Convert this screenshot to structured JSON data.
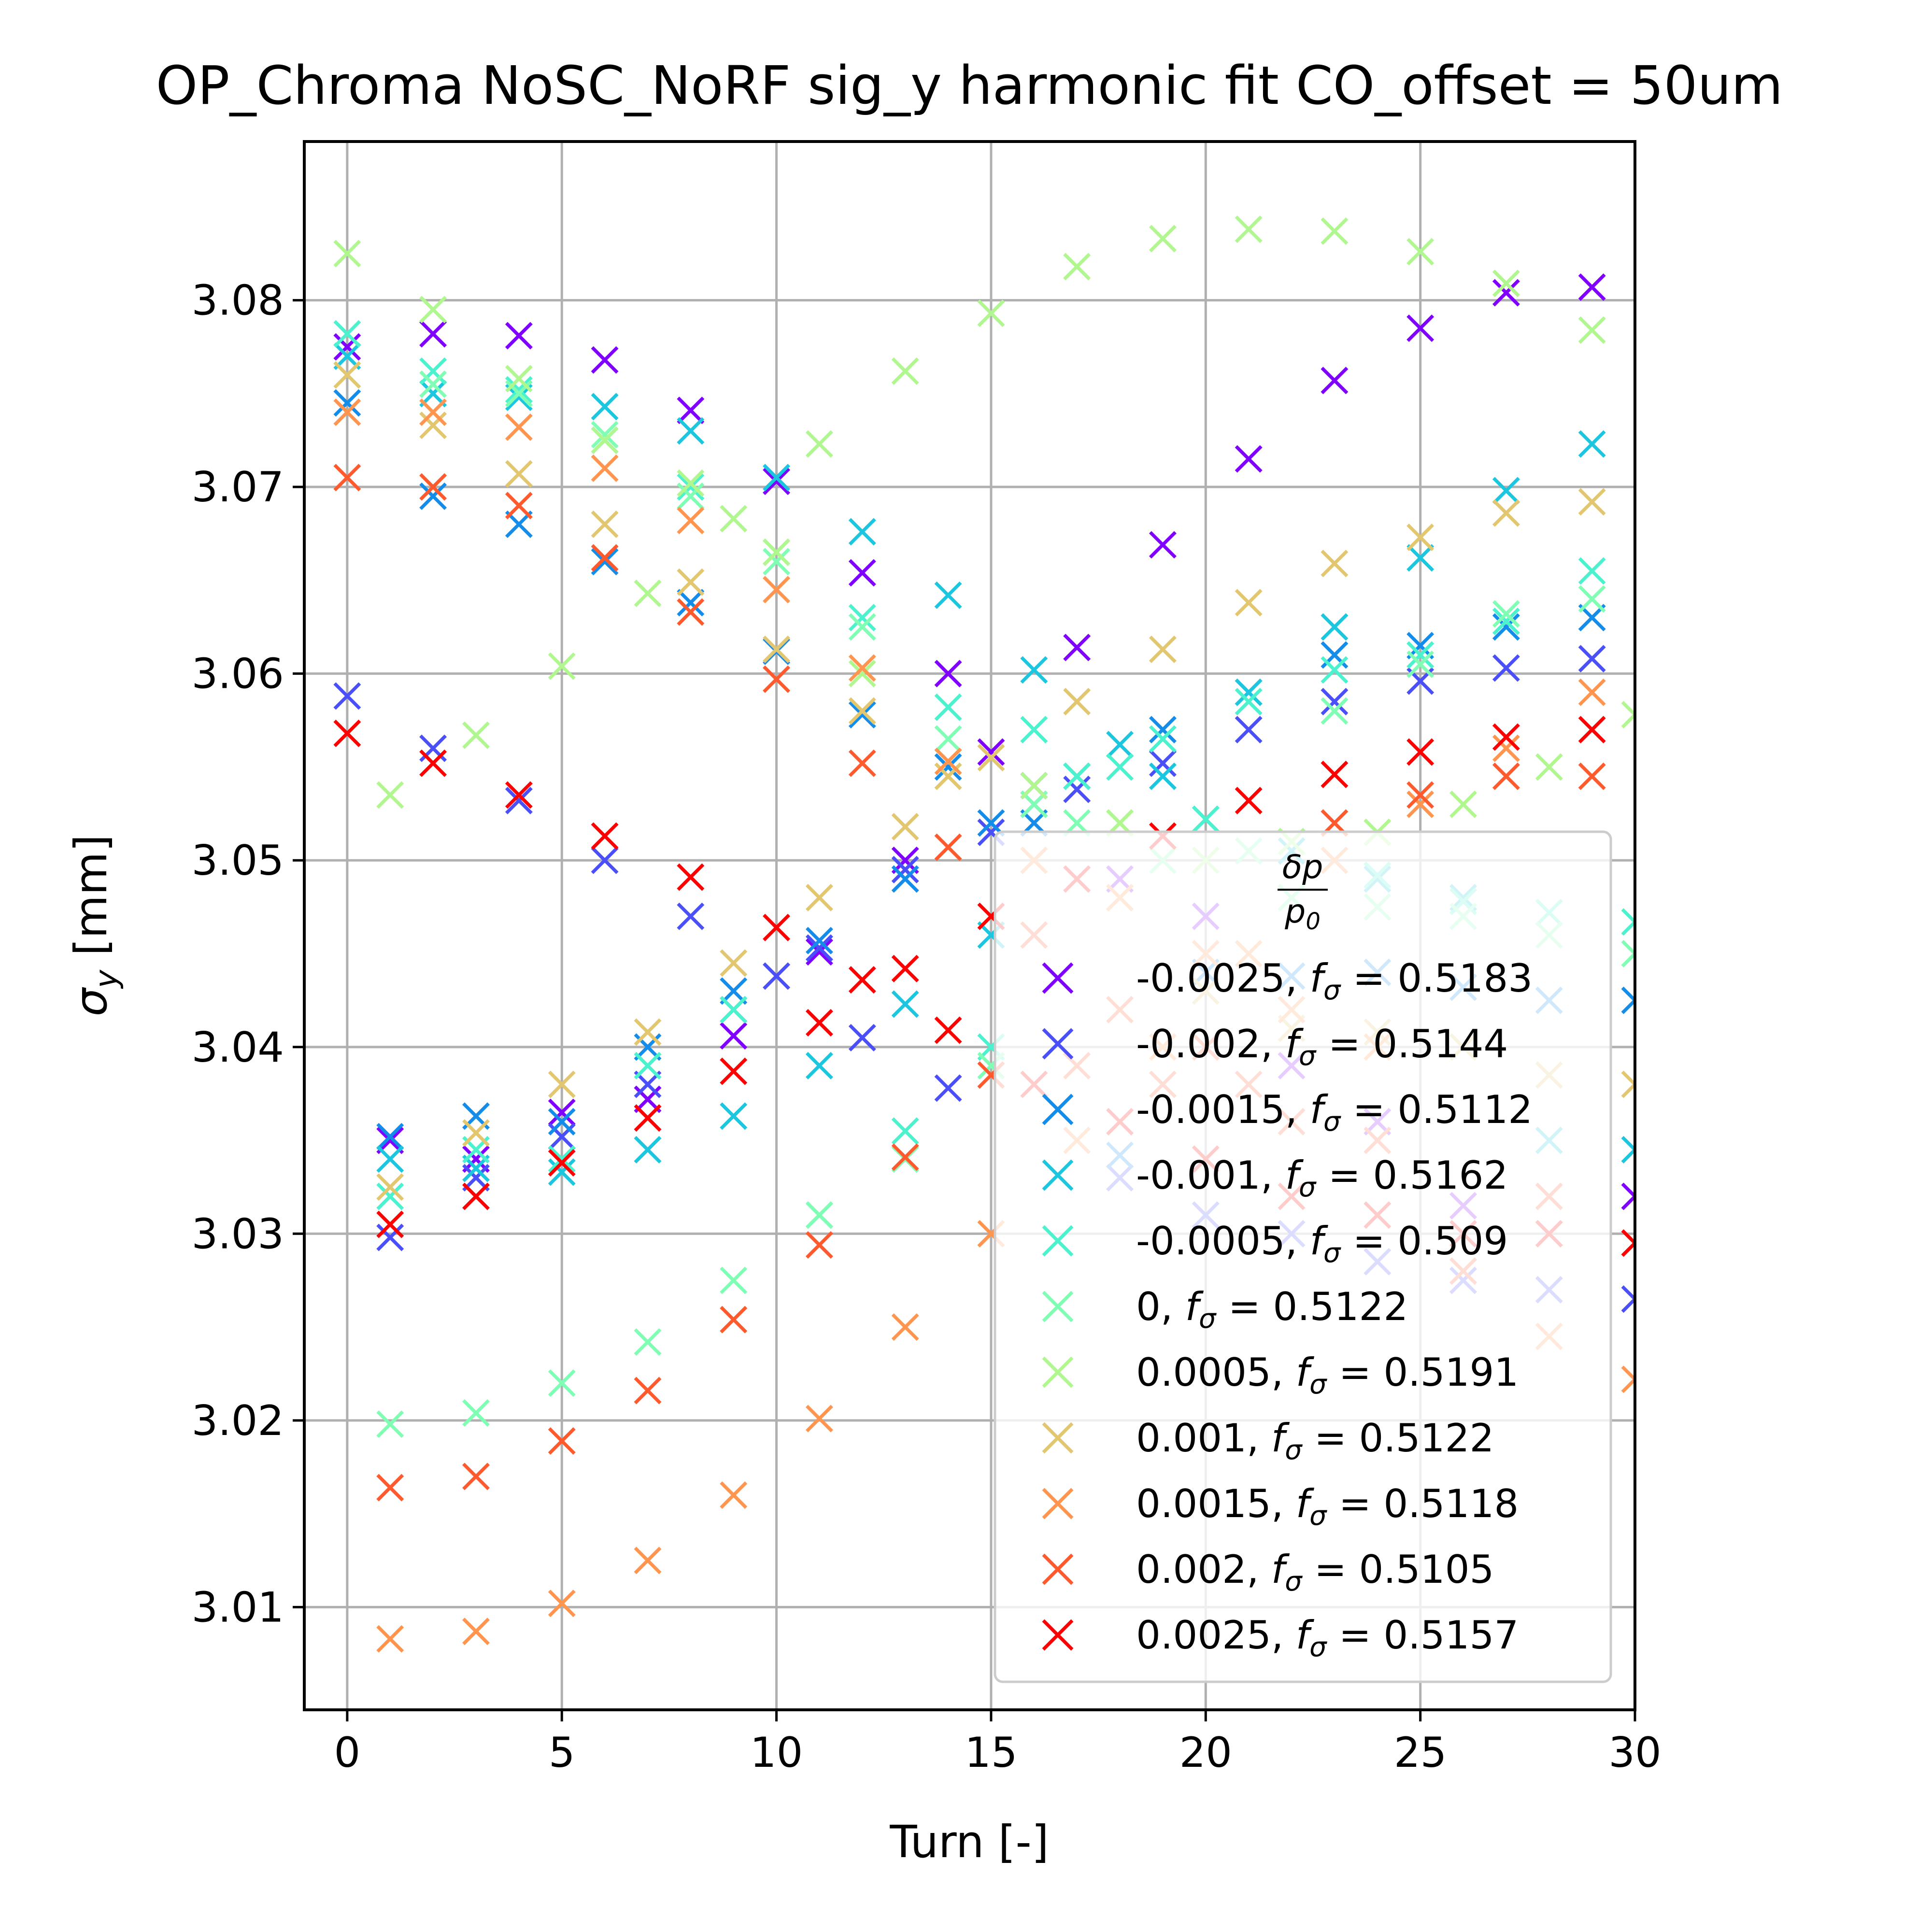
{
  "chart_data": {
    "type": "scatter",
    "title": "OP_Chroma NoSC_NoRF sig_y harmonic fit CO_offset = 50um",
    "xlabel": "Turn [-]",
    "ylabel_main": "σ",
    "ylabel_sub": "y",
    "ylabel_unit": " [mm]",
    "xlim": [
      -1,
      30
    ],
    "ylim": [
      3.0045,
      3.0885
    ],
    "xticks": [
      0,
      5,
      10,
      15,
      20,
      25,
      30
    ],
    "yticks": [
      3.01,
      3.02,
      3.03,
      3.04,
      3.05,
      3.06,
      3.07,
      3.08
    ],
    "ytick_labels": [
      "3.01",
      "3.02",
      "3.03",
      "3.04",
      "3.05",
      "3.06",
      "3.07",
      "3.08"
    ],
    "grid": true,
    "marker": "x",
    "legend": {
      "placement": "lower-right",
      "title_num": "δp",
      "title_den": "p",
      "title_den_sub": "0",
      "entry_prefix": "f",
      "entry_sub": "σ"
    },
    "series": [
      {
        "name": "-0.0025",
        "f_sigma": "0.5183",
        "color": "#8000ff",
        "x": [
          0,
          1,
          2,
          3,
          4,
          5,
          6,
          7,
          8,
          9,
          10,
          11,
          12,
          13,
          14,
          15,
          16,
          17,
          18,
          19,
          20,
          21,
          22,
          23,
          24,
          25,
          26,
          27,
          28,
          29,
          30
        ],
        "y": [
          3.0775,
          3.035,
          3.0782,
          3.034,
          3.0781,
          3.0365,
          3.0768,
          3.0372,
          3.0741,
          3.0406,
          3.0703,
          3.0451,
          3.0654,
          3.05,
          3.06,
          3.0558,
          3.054,
          3.0614,
          3.049,
          3.0669,
          3.047,
          3.0715,
          3.039,
          3.0757,
          3.036,
          3.0785,
          3.0315,
          3.0804,
          3.03,
          3.0807,
          3.032
        ]
      },
      {
        "name": "-0.002",
        "f_sigma": "0.5144",
        "color": "#4a4ff7",
        "x": [
          0,
          1,
          2,
          3,
          4,
          5,
          6,
          7,
          8,
          9,
          10,
          11,
          12,
          13,
          14,
          15,
          16,
          17,
          18,
          19,
          20,
          21,
          22,
          23,
          24,
          25,
          26,
          27,
          28,
          29,
          30
        ],
        "y": [
          3.0588,
          3.0298,
          3.056,
          3.033,
          3.0532,
          3.0352,
          3.05,
          3.038,
          3.047,
          3.042,
          3.0438,
          3.0453,
          3.0405,
          3.0495,
          3.0378,
          3.0515,
          3.053,
          3.0538,
          3.033,
          3.0552,
          3.031,
          3.057,
          3.03,
          3.0585,
          3.0285,
          3.0596,
          3.0275,
          3.0603,
          3.027,
          3.0608,
          3.0265
        ]
      },
      {
        "name": "-0.0015",
        "f_sigma": "0.5112",
        "color": "#148dea",
        "x": [
          0,
          1,
          2,
          3,
          4,
          5,
          6,
          7,
          8,
          9,
          10,
          11,
          12,
          13,
          14,
          15,
          16,
          17,
          18,
          19,
          20,
          21,
          22,
          23,
          24,
          25,
          26,
          27,
          28,
          29,
          30
        ],
        "y": [
          3.0745,
          3.0352,
          3.0695,
          3.0363,
          3.068,
          3.036,
          3.066,
          3.04,
          3.0638,
          3.043,
          3.0612,
          3.0457,
          3.0578,
          3.049,
          3.055,
          3.052,
          3.052,
          3.0545,
          3.0342,
          3.057,
          3.044,
          3.059,
          3.0438,
          3.061,
          3.044,
          3.0615,
          3.0432,
          3.0625,
          3.0425,
          3.063,
          3.0425
        ]
      },
      {
        "name": "-0.001",
        "f_sigma": "0.5162",
        "color": "#1cc6df",
        "x": [
          0,
          1,
          2,
          3,
          4,
          5,
          6,
          7,
          8,
          9,
          10,
          11,
          12,
          13,
          14,
          15,
          16,
          17,
          18,
          19,
          20,
          21,
          22,
          23,
          24,
          25,
          26,
          27,
          28,
          29,
          30
        ],
        "y": [
          3.077,
          3.034,
          3.075,
          3.0335,
          3.0748,
          3.0333,
          3.0743,
          3.0345,
          3.073,
          3.0363,
          3.0705,
          3.039,
          3.0676,
          3.0423,
          3.0642,
          3.046,
          3.0602,
          3.0545,
          3.0562,
          3.0545,
          3.0522,
          3.059,
          3.0505,
          3.0625,
          3.049,
          3.0662,
          3.048,
          3.0698,
          3.035,
          3.0723,
          3.0345
        ]
      },
      {
        "name": "-0.0005",
        "f_sigma": "0.509",
        "color": "#4cf2ce",
        "x": [
          0,
          1,
          2,
          3,
          4,
          5,
          6,
          7,
          8,
          9,
          10,
          11,
          12,
          13,
          14,
          15,
          16,
          17,
          18,
          19,
          20,
          21,
          22,
          23,
          24,
          25,
          26,
          27,
          28,
          29,
          30
        ],
        "y": [
          3.0782,
          3.032,
          3.0762,
          3.0345,
          3.0752,
          3.034,
          3.0725,
          3.039,
          3.07,
          3.042,
          3.0665,
          3.031,
          3.063,
          3.0355,
          3.0582,
          3.04,
          3.057,
          3.0545,
          3.055,
          3.0565,
          3.0522,
          3.0585,
          3.051,
          3.0602,
          3.0492,
          3.061,
          3.0478,
          3.0628,
          3.0472,
          3.0655,
          3.0467
        ]
      },
      {
        "name": "0",
        "f_sigma": "0.5122",
        "color": "#80ffb4",
        "x": [
          0,
          1,
          2,
          3,
          4,
          5,
          6,
          7,
          8,
          9,
          10,
          11,
          12,
          13,
          14,
          15,
          16,
          17,
          18,
          19,
          20,
          21,
          22,
          23,
          24,
          25,
          26,
          27,
          28,
          29,
          30
        ],
        "y": [
          3.076,
          3.0198,
          3.0755,
          3.0204,
          3.075,
          3.022,
          3.0728,
          3.0242,
          3.0695,
          3.0275,
          3.066,
          3.031,
          3.0625,
          3.034,
          3.0565,
          3.039,
          3.053,
          3.052,
          3.052,
          3.05,
          3.05,
          3.0505,
          3.048,
          3.058,
          3.0475,
          3.0605,
          3.047,
          3.0632,
          3.046,
          3.064,
          3.045
        ]
      },
      {
        "name": "0.0005",
        "f_sigma": "0.5191",
        "color": "#b1f78f",
        "x": [
          0,
          1,
          2,
          3,
          4,
          5,
          6,
          7,
          8,
          9,
          10,
          11,
          12,
          13,
          14,
          15,
          16,
          17,
          18,
          19,
          20,
          21,
          22,
          23,
          24,
          25,
          26,
          27,
          28,
          29,
          30
        ],
        "y": [
          3.0825,
          3.0535,
          3.0795,
          3.0567,
          3.0758,
          3.0604,
          3.0725,
          3.0643,
          3.0702,
          3.0683,
          3.0665,
          3.0723,
          3.06,
          3.0762,
          3.0545,
          3.0793,
          3.054,
          3.0818,
          3.052,
          3.0833,
          3.05,
          3.0838,
          3.051,
          3.0837,
          3.0515,
          3.0826,
          3.053,
          3.0809,
          3.055,
          3.0784,
          3.0578
        ]
      },
      {
        "name": "0.001",
        "f_sigma": "0.5122",
        "color": "#e2c770",
        "x": [
          0,
          1,
          2,
          3,
          4,
          5,
          6,
          7,
          8,
          9,
          10,
          11,
          12,
          13,
          14,
          15,
          16,
          17,
          18,
          19,
          20,
          21,
          22,
          23,
          24,
          25,
          26,
          27,
          28,
          29,
          30
        ],
        "y": [
          3.076,
          3.0325,
          3.0733,
          3.0354,
          3.0707,
          3.038,
          3.068,
          3.0408,
          3.0649,
          3.0445,
          3.0613,
          3.048,
          3.058,
          3.0518,
          3.0545,
          3.0555,
          3.05,
          3.0585,
          3.048,
          3.0613,
          3.043,
          3.0638,
          3.041,
          3.0659,
          3.0408,
          3.0673,
          3.04,
          3.0686,
          3.0385,
          3.0692,
          3.038
        ]
      },
      {
        "name": "0.0015",
        "f_sigma": "0.5118",
        "color": "#ff954e",
        "x": [
          0,
          1,
          2,
          3,
          4,
          5,
          6,
          7,
          8,
          9,
          10,
          11,
          12,
          13,
          14,
          15,
          16,
          17,
          18,
          19,
          20,
          21,
          22,
          23,
          24,
          25,
          26,
          27,
          28,
          29,
          30
        ],
        "y": [
          3.074,
          3.0083,
          3.074,
          3.0087,
          3.0732,
          3.0102,
          3.071,
          3.0125,
          3.0682,
          3.016,
          3.0645,
          3.0201,
          3.0603,
          3.025,
          3.0553,
          3.03,
          3.05,
          3.035,
          3.048,
          3.04,
          3.045,
          3.045,
          3.042,
          3.05,
          3.04,
          3.053,
          3.028,
          3.056,
          3.0245,
          3.059,
          3.0222
        ]
      },
      {
        "name": "0.002",
        "f_sigma": "0.5105",
        "color": "#ff5a2d",
        "x": [
          0,
          1,
          2,
          3,
          4,
          5,
          6,
          7,
          8,
          9,
          10,
          11,
          12,
          13,
          14,
          15,
          16,
          17,
          18,
          19,
          20,
          21,
          22,
          23,
          24,
          25,
          26,
          27,
          28,
          29,
          30
        ],
        "y": [
          3.0705,
          3.0164,
          3.07,
          3.017,
          3.069,
          3.0189,
          3.0662,
          3.0216,
          3.0633,
          3.0254,
          3.0597,
          3.0294,
          3.0552,
          3.0341,
          3.0507,
          3.0385,
          3.046,
          3.039,
          3.042,
          3.038,
          3.04,
          3.038,
          3.036,
          3.052,
          3.035,
          3.0535,
          3.028,
          3.0545,
          3.032,
          3.0545,
          3.0295
        ]
      },
      {
        "name": "0.0025",
        "f_sigma": "0.5157",
        "color": "#ff0000",
        "x": [
          0,
          1,
          2,
          3,
          4,
          5,
          6,
          7,
          8,
          9,
          10,
          11,
          12,
          13,
          14,
          15,
          16,
          17,
          18,
          19,
          20,
          21,
          22,
          23,
          24,
          25,
          26,
          27,
          28,
          29,
          30
        ],
        "y": [
          3.0568,
          3.0305,
          3.0552,
          3.032,
          3.0535,
          3.0338,
          3.0513,
          3.0362,
          3.0491,
          3.0387,
          3.0464,
          3.0413,
          3.0436,
          3.0442,
          3.0409,
          3.047,
          3.038,
          3.049,
          3.036,
          3.0513,
          3.034,
          3.0532,
          3.032,
          3.0546,
          3.031,
          3.0558,
          3.03,
          3.0566,
          3.03,
          3.057,
          3.0295
        ]
      }
    ]
  }
}
